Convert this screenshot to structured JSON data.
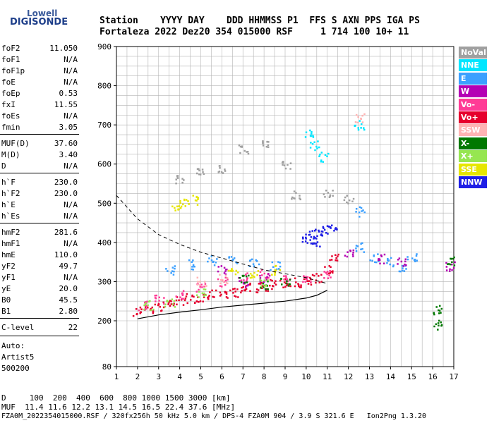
{
  "logo": {
    "line1": "Lowell",
    "line2": "DIGISONDE"
  },
  "header": {
    "line1": "Station    YYYY DAY    DDD HHMMSS P1  FFS S AXN PPS IGA PS",
    "line2": "Fortaleza 2022 Dez20 354 015000 RSF     1 714 100 10+ 11"
  },
  "params": [
    {
      "name": "foF2",
      "value": "11.050"
    },
    {
      "name": "foF1",
      "value": "N/A"
    },
    {
      "name": "foF1p",
      "value": "N/A"
    },
    {
      "name": "foE",
      "value": "N/A"
    },
    {
      "name": "foEp",
      "value": "0.53"
    },
    {
      "name": "fxI",
      "value": "11.55"
    },
    {
      "name": "foEs",
      "value": "N/A"
    },
    {
      "name": "fmin",
      "value": "3.05"
    },
    {
      "name": "MUF(D)",
      "value": "37.60"
    },
    {
      "name": "M(D)",
      "value": "3.40"
    },
    {
      "name": "D",
      "value": "N/A"
    },
    {
      "name": "h`F",
      "value": "230.0"
    },
    {
      "name": "h`F2",
      "value": "230.0"
    },
    {
      "name": "h`E",
      "value": "N/A"
    },
    {
      "name": "h`Es",
      "value": "N/A"
    },
    {
      "name": "hmF2",
      "value": "281.6"
    },
    {
      "name": "hmF1",
      "value": "N/A"
    },
    {
      "name": "hmE",
      "value": "110.0"
    },
    {
      "name": "yF2",
      "value": "49.7"
    },
    {
      "name": "yF1",
      "value": "N/A"
    },
    {
      "name": "yE",
      "value": "20.0"
    },
    {
      "name": "B0",
      "value": "45.5"
    },
    {
      "name": "B1",
      "value": "2.80"
    },
    {
      "name": "C-level",
      "value": "22"
    }
  ],
  "auto": {
    "line1": "Auto:",
    "line2": "Artist5",
    "line3": "500200"
  },
  "legend": [
    {
      "label": "NoVal",
      "color": "#a0a0a0",
      "text": "#ffffff"
    },
    {
      "label": "NNE",
      "color": "#00e6ff",
      "text": "#ffffff"
    },
    {
      "label": "E",
      "color": "#3ca0ff",
      "text": "#ffffff"
    },
    {
      "label": "W",
      "color": "#b400b4",
      "text": "#ffffff"
    },
    {
      "label": "Vo-",
      "color": "#ff3c96",
      "text": "#ffffff"
    },
    {
      "label": "Vo+",
      "color": "#e6002d",
      "text": "#ffffff"
    },
    {
      "label": "SSW",
      "color": "#ffb4b4",
      "text": "#ffffff"
    },
    {
      "label": "X-",
      "color": "#007800",
      "text": "#ffffff"
    },
    {
      "label": "X+",
      "color": "#96e650",
      "text": "#ffffff"
    },
    {
      "label": "SSE",
      "color": "#e6e600",
      "text": "#ffffff"
    },
    {
      "label": "NNW",
      "color": "#1e1ee6",
      "text": "#ffffff"
    }
  ],
  "footer": {
    "line1": "D     100  200  400  600  800 1000 1500 3000 [km]",
    "line2": "MUF  11.4 11.6 12.2 13.1 14.5 16.5 22.4 37.6 [MHz]",
    "line3": "FZA0M_2022354015000.RSF / 320fx256h 50 kHz 5.0 km / DPS-4 FZA0M 904 / 3.9 S 321.6 E   Ion2Png 1.3.20"
  },
  "chart_data": {
    "type": "scatter",
    "title": "",
    "xlabel": "",
    "ylabel": "",
    "xlim": [
      1,
      17
    ],
    "ylim": [
      80,
      900
    ],
    "x_ticks": [
      1,
      2,
      3,
      4,
      5,
      6,
      7,
      8,
      9,
      10,
      11,
      12,
      13,
      14,
      15,
      16,
      17
    ],
    "y_ticks": [
      80,
      200,
      300,
      400,
      500,
      600,
      700,
      800,
      900
    ],
    "grid": true,
    "series": [
      {
        "name": "Vo+",
        "color": "#e6002d",
        "points": [
          [
            2.0,
            225
          ],
          [
            2.5,
            232
          ],
          [
            3.0,
            238
          ],
          [
            3.5,
            245
          ],
          [
            4.0,
            252
          ],
          [
            4.5,
            258
          ],
          [
            5.0,
            262
          ],
          [
            5.5,
            268
          ],
          [
            6.0,
            272
          ],
          [
            6.5,
            275
          ],
          [
            7.0,
            280
          ],
          [
            7.5,
            285
          ],
          [
            8.0,
            290
          ],
          [
            8.5,
            294
          ],
          [
            9.0,
            298
          ],
          [
            9.5,
            300
          ],
          [
            10.0,
            302
          ],
          [
            10.5,
            310
          ],
          [
            11.0,
            330
          ],
          [
            11.3,
            360
          ]
        ]
      },
      {
        "name": "Vo-",
        "color": "#ff3c96",
        "points": [
          [
            2.2,
            240
          ],
          [
            3.0,
            255
          ],
          [
            4.0,
            270
          ],
          [
            5.0,
            285
          ],
          [
            6.0,
            300
          ],
          [
            7.0,
            315
          ],
          [
            8.0,
            320
          ],
          [
            9.0,
            310
          ],
          [
            10.0,
            305
          ],
          [
            11.0,
            320
          ]
        ]
      },
      {
        "name": "E",
        "color": "#3ca0ff",
        "points": [
          [
            3.5,
            330
          ],
          [
            4.5,
            345
          ],
          [
            5.5,
            355
          ],
          [
            6.5,
            360
          ],
          [
            7.5,
            350
          ],
          [
            8.5,
            340
          ],
          [
            12.5,
            390
          ],
          [
            12.5,
            480
          ],
          [
            13.2,
            360
          ],
          [
            14.0,
            350
          ],
          [
            14.5,
            340
          ],
          [
            15.0,
            360
          ]
        ]
      },
      {
        "name": "NNW",
        "color": "#1e1ee6",
        "points": [
          [
            10.0,
            410
          ],
          [
            10.3,
            420
          ],
          [
            10.6,
            425
          ],
          [
            10.9,
            430
          ],
          [
            11.2,
            440
          ],
          [
            10.5,
            400
          ]
        ]
      },
      {
        "name": "W",
        "color": "#b400b4",
        "points": [
          [
            6.0,
            330
          ],
          [
            7.0,
            300
          ],
          [
            8.0,
            310
          ],
          [
            12.0,
            370
          ],
          [
            13.5,
            360
          ],
          [
            14.5,
            350
          ],
          [
            16.8,
            340
          ]
        ]
      },
      {
        "name": "NNE",
        "color": "#00e6ff",
        "points": [
          [
            10.1,
            680
          ],
          [
            10.4,
            650
          ],
          [
            10.8,
            620
          ],
          [
            12.5,
            700
          ]
        ]
      },
      {
        "name": "SSE",
        "color": "#e6e600",
        "points": [
          [
            3.8,
            495
          ],
          [
            4.2,
            500
          ],
          [
            4.6,
            510
          ],
          [
            6.5,
            330
          ],
          [
            7.5,
            320
          ],
          [
            8.5,
            330
          ]
        ]
      },
      {
        "name": "X-",
        "color": "#007800",
        "points": [
          [
            7.0,
            310
          ],
          [
            8.0,
            295
          ],
          [
            9.0,
            300
          ],
          [
            16.2,
            190
          ],
          [
            16.2,
            230
          ],
          [
            16.8,
            355
          ]
        ]
      },
      {
        "name": "X+",
        "color": "#96e650",
        "points": [
          [
            2.5,
            240
          ],
          [
            3.5,
            250
          ],
          [
            5.0,
            270
          ],
          [
            8.0,
            300
          ]
        ]
      },
      {
        "name": "SSW",
        "color": "#ffb4b4",
        "points": [
          [
            12.5,
            720
          ],
          [
            5.0,
            300
          ],
          [
            6.0,
            310
          ]
        ]
      },
      {
        "name": "NoVal",
        "color": "#a0a0a0",
        "points": [
          [
            4.0,
            560
          ],
          [
            5.0,
            580
          ],
          [
            6.0,
            590
          ],
          [
            7.0,
            640
          ],
          [
            8.0,
            650
          ],
          [
            9.0,
            600
          ],
          [
            9.5,
            520
          ],
          [
            11.0,
            530
          ],
          [
            12.0,
            510
          ]
        ]
      }
    ],
    "profile_curve": [
      [
        2.0,
        205
      ],
      [
        3.0,
        215
      ],
      [
        4.0,
        222
      ],
      [
        5.0,
        228
      ],
      [
        6.0,
        235
      ],
      [
        7.0,
        240
      ],
      [
        8.0,
        245
      ],
      [
        9.0,
        250
      ],
      [
        10.0,
        258
      ],
      [
        10.5,
        265
      ],
      [
        11.0,
        278
      ]
    ],
    "dashed_curve": [
      [
        1.0,
        520
      ],
      [
        2.0,
        460
      ],
      [
        3.0,
        420
      ],
      [
        4.0,
        395
      ],
      [
        5.0,
        375
      ],
      [
        6.0,
        360
      ],
      [
        7.0,
        345
      ],
      [
        8.0,
        330
      ],
      [
        9.0,
        320
      ],
      [
        10.0,
        310
      ],
      [
        11.0,
        295
      ]
    ]
  }
}
